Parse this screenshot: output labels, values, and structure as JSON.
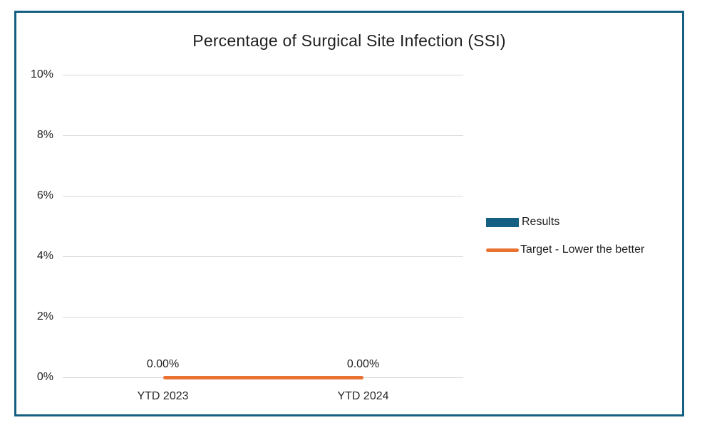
{
  "window": {
    "background": "#ffffff",
    "border_color": "#156082"
  },
  "chart_data": {
    "type": "bar",
    "subtype": "combo-bar-line",
    "title": "Percentage of Surgical Site Infection (SSI)",
    "categories": [
      "YTD 2023",
      "YTD 2024"
    ],
    "series": [
      {
        "name": "Results",
        "render": "bar",
        "color": "#156082",
        "values": [
          0,
          0
        ]
      },
      {
        "name": "Target - Lower the better",
        "render": "line",
        "color": "#E97132",
        "values": [
          0,
          0
        ],
        "data_labels": [
          "0.00%",
          "0.00%"
        ]
      }
    ],
    "y_axis": {
      "min": 0,
      "max": 10,
      "tick_step": 2,
      "unit": "%",
      "ticks": [
        {
          "value": 0,
          "label": "0%"
        },
        {
          "value": 2,
          "label": "2%"
        },
        {
          "value": 4,
          "label": "4%"
        },
        {
          "value": 6,
          "label": "6%"
        },
        {
          "value": 8,
          "label": "8%"
        },
        {
          "value": 10,
          "label": "10%"
        }
      ]
    },
    "grid": {
      "show": true,
      "color": "#d9d9d9"
    },
    "legend": {
      "position": "right",
      "entries": [
        "Results",
        "Target - Lower the better"
      ]
    }
  }
}
